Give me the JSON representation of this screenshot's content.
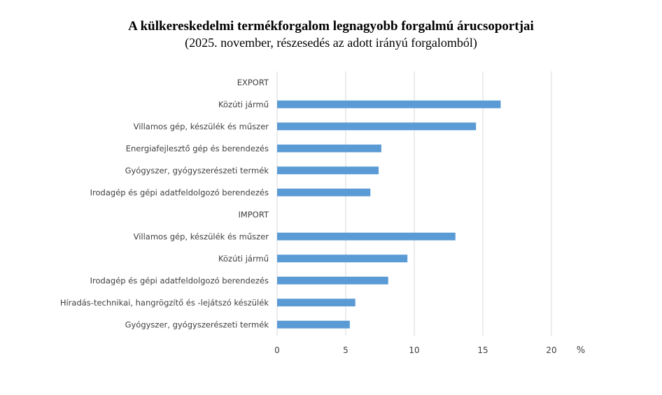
{
  "chart_data": {
    "type": "bar",
    "orientation": "horizontal",
    "title": "A külkereskedelmi termékforgalom legnagyobb forgalmú árucsoportjai",
    "subtitle": "(2025. november, részesedés az adott irányú forgalomból)",
    "unit": "%",
    "categories": [
      "EXPORT",
      "Közúti jármű",
      "Villamos gép, készülék és műszer",
      "Energiafejlesztő gép és berendezés",
      "Gyógyszer, gyógyszerészeti termék",
      "Irodagép és gépi adatfeldolgozó berendezés",
      "IMPORT",
      "Villamos gép, készülék és műszer",
      "Közúti jármű",
      "Irodagép és gépi adatfeldolgozó berendezés",
      "Híradás-technikai, hangrögzítő és -lejátszó készülék",
      "Gyógyszer, gyógyszerészeti termék"
    ],
    "values": [
      null,
      16.3,
      14.5,
      7.6,
      7.4,
      6.8,
      null,
      13.0,
      9.5,
      8.1,
      5.7,
      5.3
    ],
    "xlim": [
      0,
      20
    ],
    "xticks": [
      "0",
      "5",
      "10",
      "15",
      "20"
    ],
    "grid": true,
    "legend": "none",
    "bar_color": "#5B9BD5",
    "grid_color": "#D9D9D9"
  }
}
